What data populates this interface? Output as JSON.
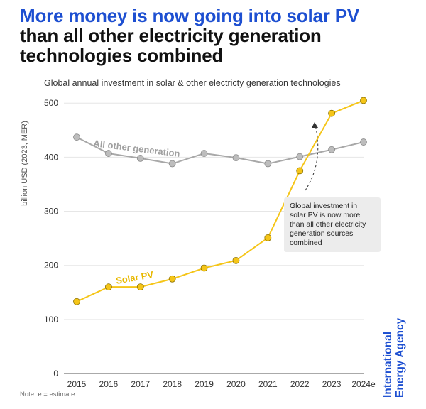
{
  "headline": {
    "line1": "More money is now going into solar PV",
    "line2": "than all other electricity generation",
    "line3": "technologies combined"
  },
  "colors": {
    "headline_blue": "#1d4fd1",
    "solar": "#f5c518",
    "solar_label": "#e8b800",
    "other": "#a8a8a8",
    "other_label": "#a0a0a0"
  },
  "chart_data": {
    "type": "line",
    "title": "Global annual investment in solar & other electricty generation technologies",
    "ylabel": "billion USD (2023, MER)",
    "xlabel": "",
    "categories": [
      "2015",
      "2016",
      "2017",
      "2018",
      "2019",
      "2020",
      "2021",
      "2022",
      "2023",
      "2024e"
    ],
    "series": [
      {
        "name": "All other generation",
        "values": [
          437,
          407,
          398,
          388,
          407,
          399,
          388,
          401,
          414,
          428
        ]
      },
      {
        "name": "Solar PV",
        "values": [
          133,
          160,
          160,
          175,
          195,
          209,
          251,
          375,
          481,
          505
        ]
      }
    ],
    "yticks": [
      0,
      100,
      200,
      300,
      400,
      500
    ],
    "ylim": [
      0,
      520
    ],
    "grid": true,
    "annotation": "Global investment in solar PV is now more than all other electricity generation sources combined"
  },
  "note": "Note: e = estimate",
  "logo": {
    "line1": "International",
    "line2": "Energy Agency"
  }
}
